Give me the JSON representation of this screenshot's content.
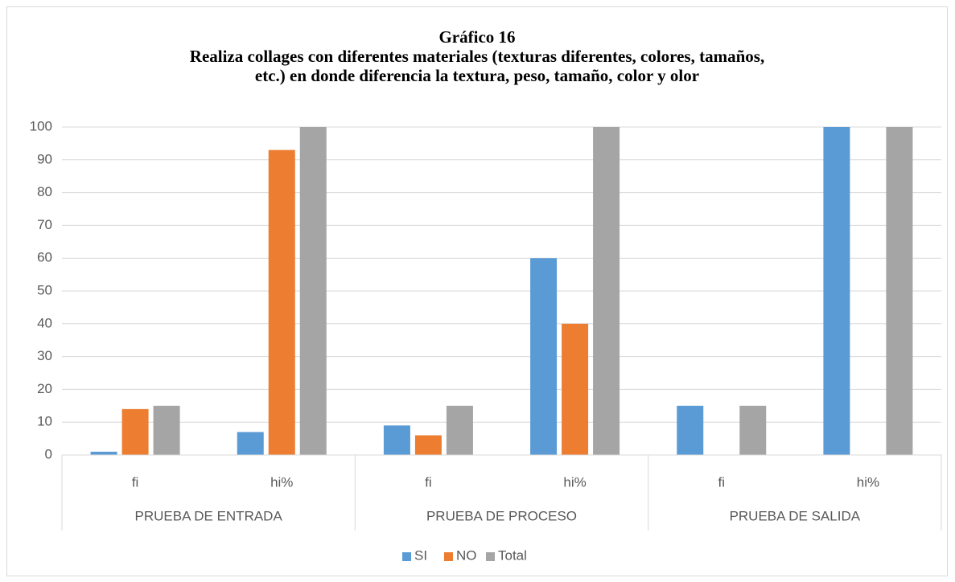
{
  "chart_data": {
    "type": "bar",
    "title": [
      "Gráfico 16",
      "Realiza collages con diferentes materiales (texturas diferentes, colores, tamaños,",
      "etc.) en donde diferencia la textura, peso, tamaño, color y olor"
    ],
    "groups": [
      "PRUEBA DE ENTRADA",
      "PRUEBA DE PROCESO",
      "PRUEBA DE SALIDA"
    ],
    "categories": [
      "fi",
      "hi%",
      "fi",
      "hi%",
      "fi",
      "hi%"
    ],
    "series": [
      {
        "name": "SI",
        "color": "#5b9bd5",
        "values": [
          1,
          7,
          9,
          60,
          15,
          100
        ]
      },
      {
        "name": "NO",
        "color": "#ed7d31",
        "values": [
          14,
          93,
          6,
          40,
          0,
          0
        ]
      },
      {
        "name": "Total",
        "color": "#a5a5a5",
        "values": [
          15,
          100,
          15,
          100,
          15,
          100
        ]
      }
    ],
    "ylim": [
      0,
      100
    ],
    "yticks": [
      0,
      10,
      20,
      30,
      40,
      50,
      60,
      70,
      80,
      90,
      100
    ],
    "grid": true,
    "legend": "bottom"
  }
}
